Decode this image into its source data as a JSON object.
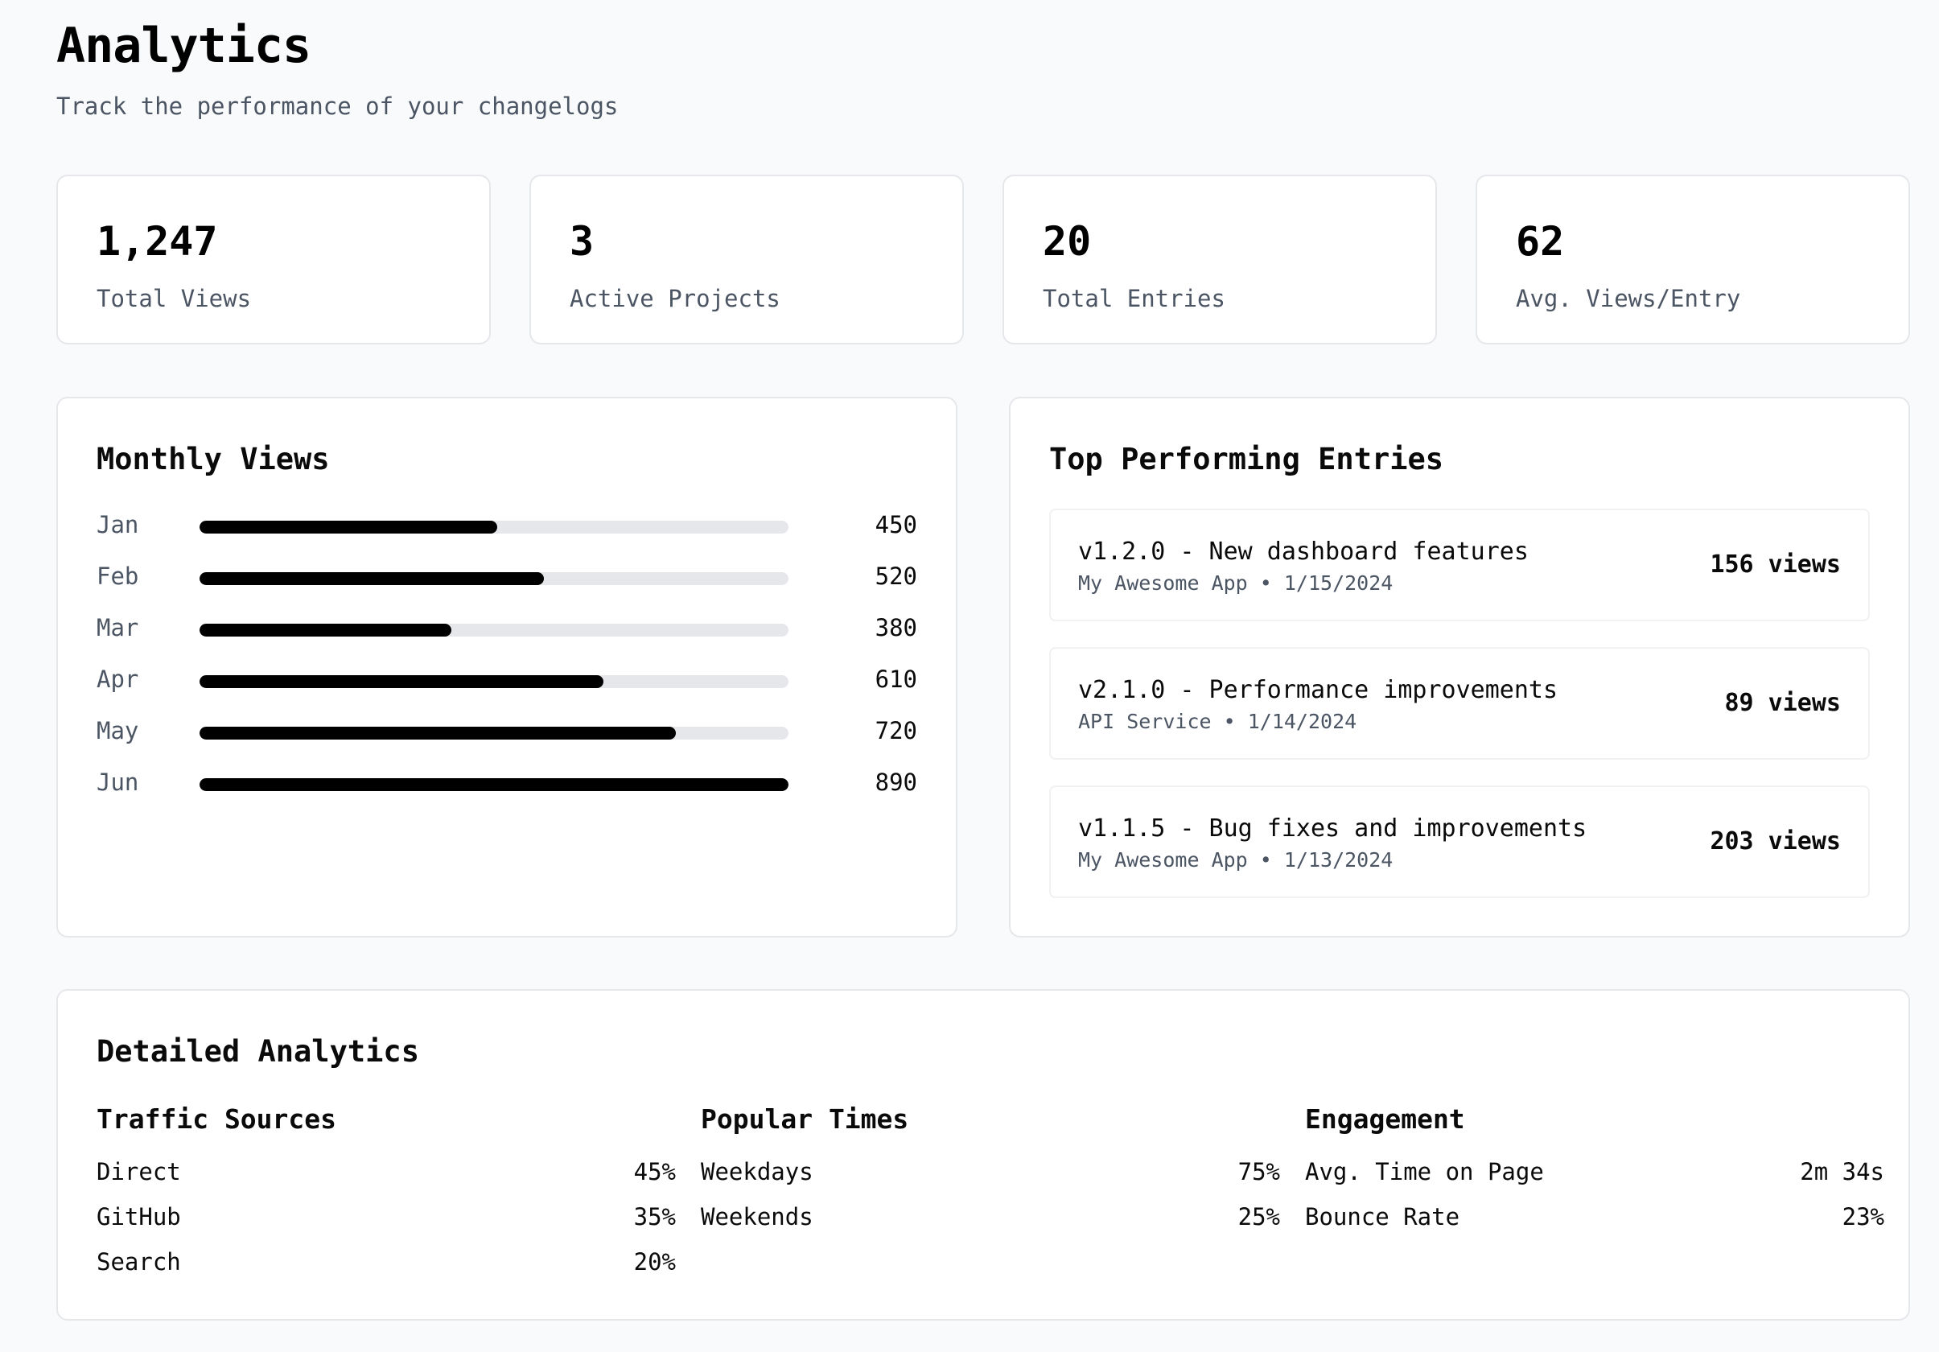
{
  "header": {
    "title": "Analytics",
    "subtitle": "Track the performance of your changelogs"
  },
  "stats": [
    {
      "value": "1,247",
      "label": "Total Views"
    },
    {
      "value": "3",
      "label": "Active Projects"
    },
    {
      "value": "20",
      "label": "Total Entries"
    },
    {
      "value": "62",
      "label": "Avg. Views/Entry"
    }
  ],
  "monthly_views": {
    "title": "Monthly Views",
    "max": 890,
    "rows": [
      {
        "month": "Jan",
        "value": 450
      },
      {
        "month": "Feb",
        "value": 520
      },
      {
        "month": "Mar",
        "value": 380
      },
      {
        "month": "Apr",
        "value": 610
      },
      {
        "month": "May",
        "value": 720
      },
      {
        "month": "Jun",
        "value": 890
      }
    ]
  },
  "top_entries": {
    "title": "Top Performing Entries",
    "items": [
      {
        "title": "v1.2.0 - New dashboard features",
        "meta": "My Awesome App • 1/15/2024",
        "views": "156 views"
      },
      {
        "title": "v2.1.0 - Performance improvements",
        "meta": "API Service • 1/14/2024",
        "views": "89 views"
      },
      {
        "title": "v1.1.5 - Bug fixes and improvements",
        "meta": "My Awesome App • 1/13/2024",
        "views": "203 views"
      }
    ]
  },
  "detailed": {
    "title": "Detailed Analytics",
    "traffic": {
      "title": "Traffic Sources",
      "rows": [
        {
          "label": "Direct",
          "value": "45%"
        },
        {
          "label": "GitHub",
          "value": "35%"
        },
        {
          "label": "Search",
          "value": "20%"
        }
      ]
    },
    "times": {
      "title": "Popular Times",
      "rows": [
        {
          "label": "Weekdays",
          "value": "75%"
        },
        {
          "label": "Weekends",
          "value": "25%"
        }
      ]
    },
    "engagement": {
      "title": "Engagement",
      "rows": [
        {
          "label": "Avg. Time on Page",
          "value": "2m 34s"
        },
        {
          "label": "Bounce Rate",
          "value": "23%"
        }
      ]
    }
  },
  "colors": {
    "bar_fill": "#000000",
    "bar_track": "#e5e7eb",
    "muted_text": "#4b5563",
    "border": "#e5e7eb",
    "background": "#f9fafb"
  }
}
